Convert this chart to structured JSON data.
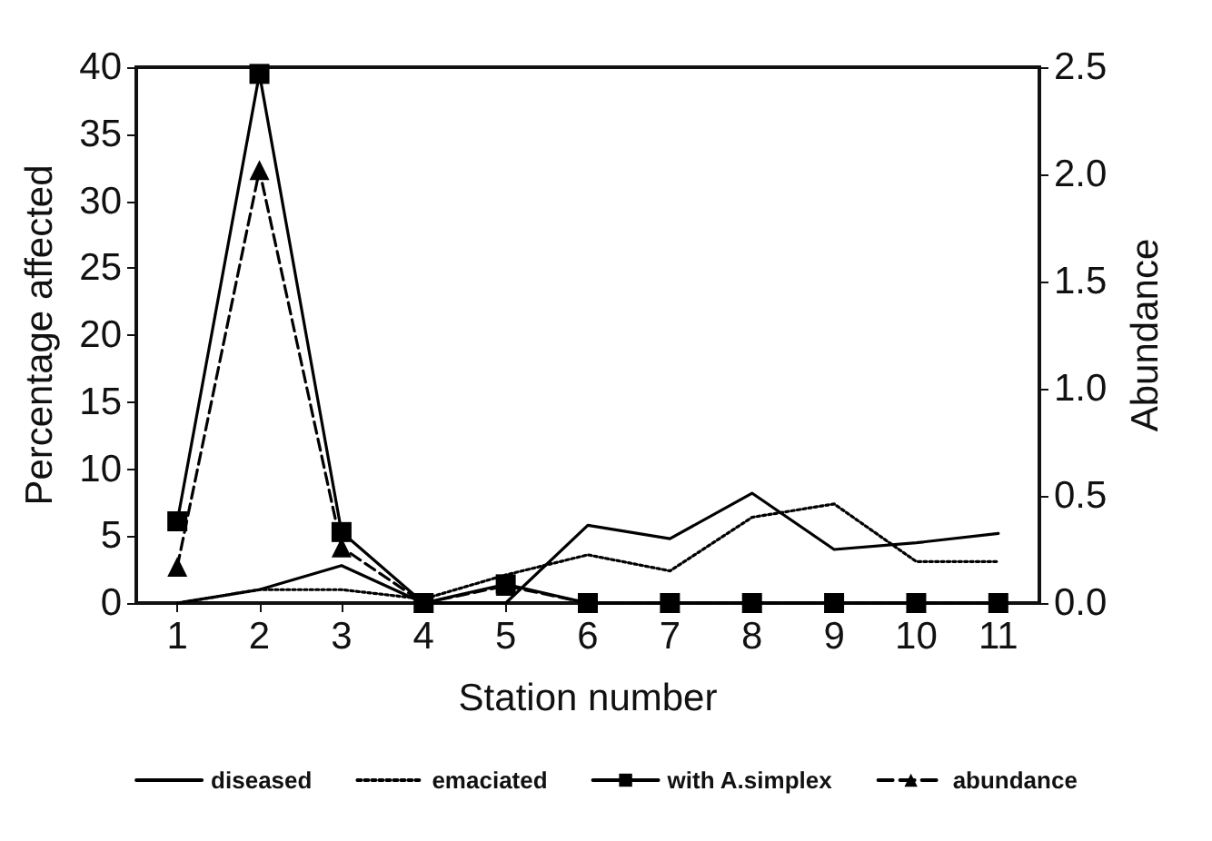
{
  "chart_data": {
    "type": "line",
    "xlabel": "Station number",
    "ylabel": "Percentage affected",
    "y2label": "Abundance",
    "categories": [
      "1",
      "2",
      "3",
      "4",
      "5",
      "6",
      "7",
      "8",
      "9",
      "10",
      "11"
    ],
    "series": [
      {
        "name": "diseased",
        "color": "#000000",
        "line_style": "solid",
        "marker": "none",
        "values": [
          0,
          1,
          2.8,
          0,
          0,
          5.8,
          4.8,
          8.2,
          4.0,
          4.5,
          5.2
        ]
      },
      {
        "name": "emaciated",
        "color": "#000000",
        "line_style": "dotted",
        "marker": "none",
        "values": [
          0,
          1,
          1,
          0.3,
          2.1,
          3.6,
          2.4,
          6.4,
          7.4,
          3.1,
          3.1
        ]
      },
      {
        "name": "with A.simplex",
        "color": "#000000",
        "line_style": "solid",
        "marker": "square",
        "values": [
          6.1,
          39.5,
          5.3,
          0,
          1.4,
          0,
          0,
          0,
          0,
          0,
          0
        ]
      },
      {
        "name": "abundance",
        "color": "#000000",
        "line_style": "dashed",
        "marker": "triangle",
        "axis": "y2",
        "values": [
          0.17,
          2.02,
          0.26,
          0,
          0.08,
          0,
          0,
          0,
          0,
          0,
          0
        ]
      }
    ],
    "ylim": [
      0,
      40
    ],
    "yticks": [
      0,
      5,
      10,
      15,
      20,
      25,
      30,
      35,
      40
    ],
    "y2lim": [
      0,
      2.5
    ],
    "y2ticks": [
      {
        "value": 0,
        "label": "0.0"
      },
      {
        "value": 0.5,
        "label": "0.5"
      },
      {
        "value": 1,
        "label": "1.0"
      },
      {
        "value": 1.5,
        "label": "1.5"
      },
      {
        "value": 2,
        "label": "2.0"
      },
      {
        "value": 2.5,
        "label": "2.5"
      }
    ],
    "grid": false,
    "legend": "bottom"
  }
}
